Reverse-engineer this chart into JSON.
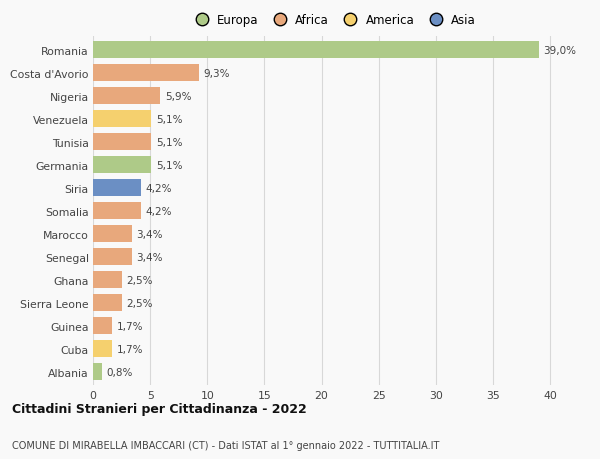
{
  "countries": [
    "Romania",
    "Costa d'Avorio",
    "Nigeria",
    "Venezuela",
    "Tunisia",
    "Germania",
    "Siria",
    "Somalia",
    "Marocco",
    "Senegal",
    "Ghana",
    "Sierra Leone",
    "Guinea",
    "Cuba",
    "Albania"
  ],
  "values": [
    39.0,
    9.3,
    5.9,
    5.1,
    5.1,
    5.1,
    4.2,
    4.2,
    3.4,
    3.4,
    2.5,
    2.5,
    1.7,
    1.7,
    0.8
  ],
  "labels": [
    "39,0%",
    "9,3%",
    "5,9%",
    "5,1%",
    "5,1%",
    "5,1%",
    "4,2%",
    "4,2%",
    "3,4%",
    "3,4%",
    "2,5%",
    "2,5%",
    "1,7%",
    "1,7%",
    "0,8%"
  ],
  "colors": [
    "#aeca88",
    "#e8a87c",
    "#e8a87c",
    "#f5d06e",
    "#e8a87c",
    "#aeca88",
    "#6b8fc4",
    "#e8a87c",
    "#e8a87c",
    "#e8a87c",
    "#e8a87c",
    "#e8a87c",
    "#e8a87c",
    "#f5d06e",
    "#aeca88"
  ],
  "legend_labels": [
    "Europa",
    "Africa",
    "America",
    "Asia"
  ],
  "legend_colors": [
    "#aeca88",
    "#e8a87c",
    "#f5d06e",
    "#6b8fc4"
  ],
  "title": "Cittadini Stranieri per Cittadinanza - 2022",
  "subtitle": "COMUNE DI MIRABELLA IMBACCARI (CT) - Dati ISTAT al 1° gennaio 2022 - TUTTITALIA.IT",
  "xlim": [
    0,
    42
  ],
  "xticks": [
    0,
    5,
    10,
    15,
    20,
    25,
    30,
    35,
    40
  ],
  "background_color": "#f9f9f9",
  "grid_color": "#d8d8d8"
}
